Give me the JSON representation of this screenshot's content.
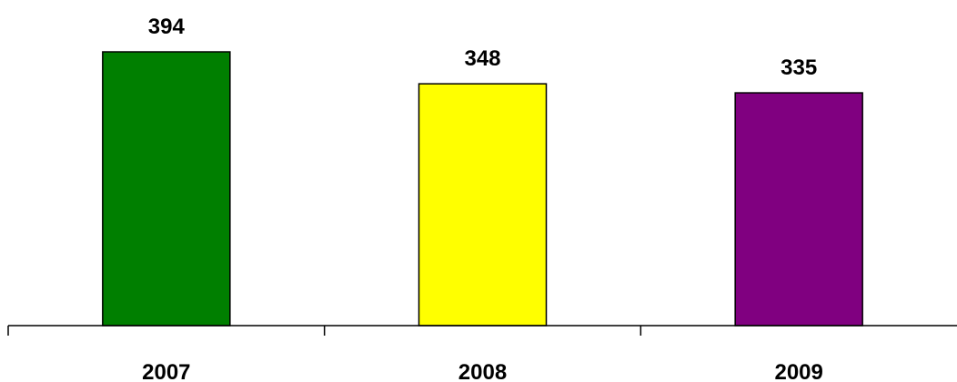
{
  "chart_data": {
    "type": "bar",
    "categories": [
      "2007",
      "2008",
      "2009"
    ],
    "values": [
      394,
      348,
      335
    ],
    "colors": [
      "#007f00",
      "#ffff00",
      "#800080"
    ],
    "data_labels": [
      "394",
      "348",
      "335"
    ],
    "title": "",
    "xlabel": "",
    "ylabel": "",
    "ylim": [
      0,
      394
    ],
    "grid": false,
    "legend": "none"
  }
}
